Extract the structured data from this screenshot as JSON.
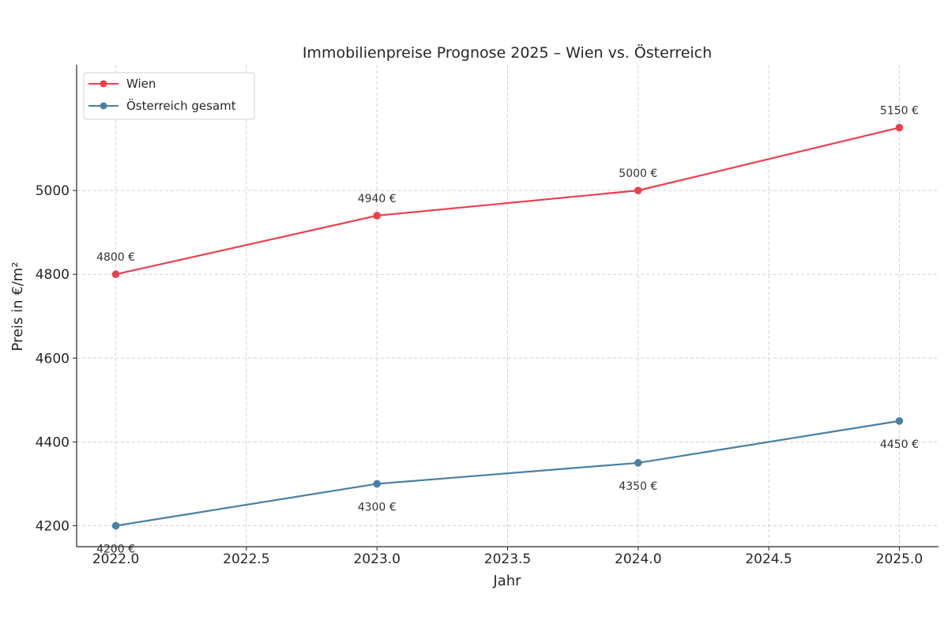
{
  "chart_data": {
    "type": "line",
    "title": "Immobilienpreise Prognose 2025 – Wien vs. Österreich",
    "xlabel": "Jahr",
    "ylabel": "Preis in €/m²",
    "xlim": [
      2021.85,
      2025.15
    ],
    "ylim": [
      4150,
      5300
    ],
    "xticks": [
      2022.0,
      2022.5,
      2023.0,
      2023.5,
      2024.0,
      2024.5,
      2025.0
    ],
    "xtick_labels": [
      "2022.0",
      "2022.5",
      "2023.0",
      "2023.5",
      "2024.0",
      "2024.5",
      "2025.0"
    ],
    "yticks": [
      4200,
      4400,
      4600,
      4800,
      5000
    ],
    "ytick_labels": [
      "4200",
      "4400",
      "4600",
      "4800",
      "5000"
    ],
    "grid": true,
    "legend_position": "top-left",
    "series": [
      {
        "name": "Wien",
        "color": "#e8404f",
        "x": [
          2022,
          2023,
          2024,
          2025
        ],
        "y": [
          4800,
          4940,
          5000,
          5150
        ],
        "labels": [
          "4800 €",
          "4940 €",
          "5000 €",
          "5150 €"
        ],
        "label_position": "above"
      },
      {
        "name": "Österreich gesamt",
        "color": "#4a7fa3",
        "x": [
          2022,
          2023,
          2024,
          2025
        ],
        "y": [
          4200,
          4300,
          4350,
          4450
        ],
        "labels": [
          "4200 €",
          "4300 €",
          "4350 €",
          "4450 €"
        ],
        "label_position": "below"
      }
    ]
  }
}
